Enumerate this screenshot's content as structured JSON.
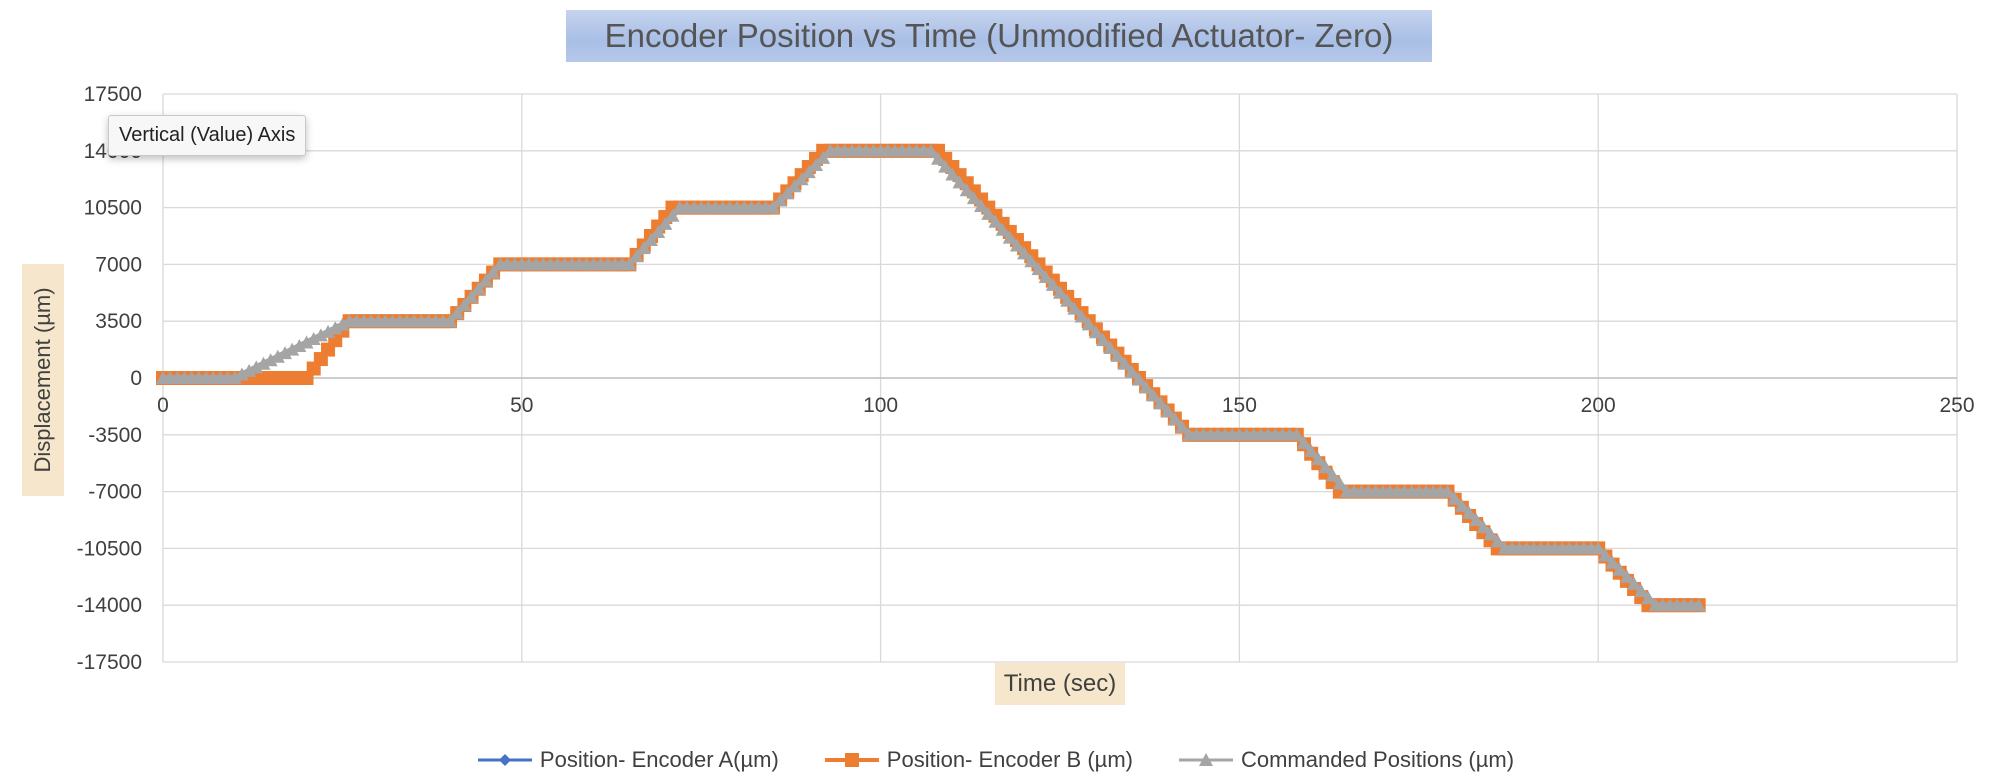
{
  "chart_data": {
    "type": "line",
    "title": "Encoder Position vs Time (Unmodified Actuator- Zero)",
    "xlabel": "Time (sec)",
    "ylabel": "Displacement  (µm)",
    "xlim": [
      0,
      250
    ],
    "ylim": [
      -17500,
      17500
    ],
    "xticks": [
      0,
      50,
      100,
      150,
      200,
      250
    ],
    "yticks": [
      17500,
      14000,
      10500,
      7000,
      3500,
      0,
      -3500,
      -7000,
      -10500,
      -14000,
      -17500
    ],
    "grid": true,
    "legend_position": "bottom",
    "x_axis_at": 0,
    "series": [
      {
        "name": "Position- Encoder A(µm)",
        "color": "#4472c4",
        "marker": "diamond",
        "x": [],
        "values": []
      },
      {
        "name": "Position- Encoder B (µm)",
        "color": "#ed7d31",
        "marker": "square",
        "x": [
          0,
          20,
          26,
          40,
          47,
          65,
          71,
          85,
          92,
          108,
          143,
          158,
          164,
          179,
          186,
          200,
          207,
          214
        ],
        "values": [
          0,
          0,
          3500,
          3500,
          7000,
          7000,
          10500,
          10500,
          14000,
          14000,
          -3500,
          -3500,
          -7000,
          -7000,
          -10500,
          -10500,
          -14000,
          -14000
        ]
      },
      {
        "name": "Commanded Positions (µm)",
        "color": "#a5a5a5",
        "marker": "triangle",
        "x": [
          0,
          10,
          26,
          40,
          47,
          65,
          72,
          85,
          93,
          107,
          143,
          158,
          165,
          179,
          187,
          200,
          208,
          214
        ],
        "values": [
          0,
          0,
          3500,
          3500,
          7000,
          7000,
          10500,
          10500,
          14000,
          14000,
          -3500,
          -3500,
          -7000,
          -7000,
          -10500,
          -10500,
          -14000,
          -14000
        ]
      }
    ]
  },
  "tooltip": {
    "text": "Vertical (Value) Axis"
  }
}
